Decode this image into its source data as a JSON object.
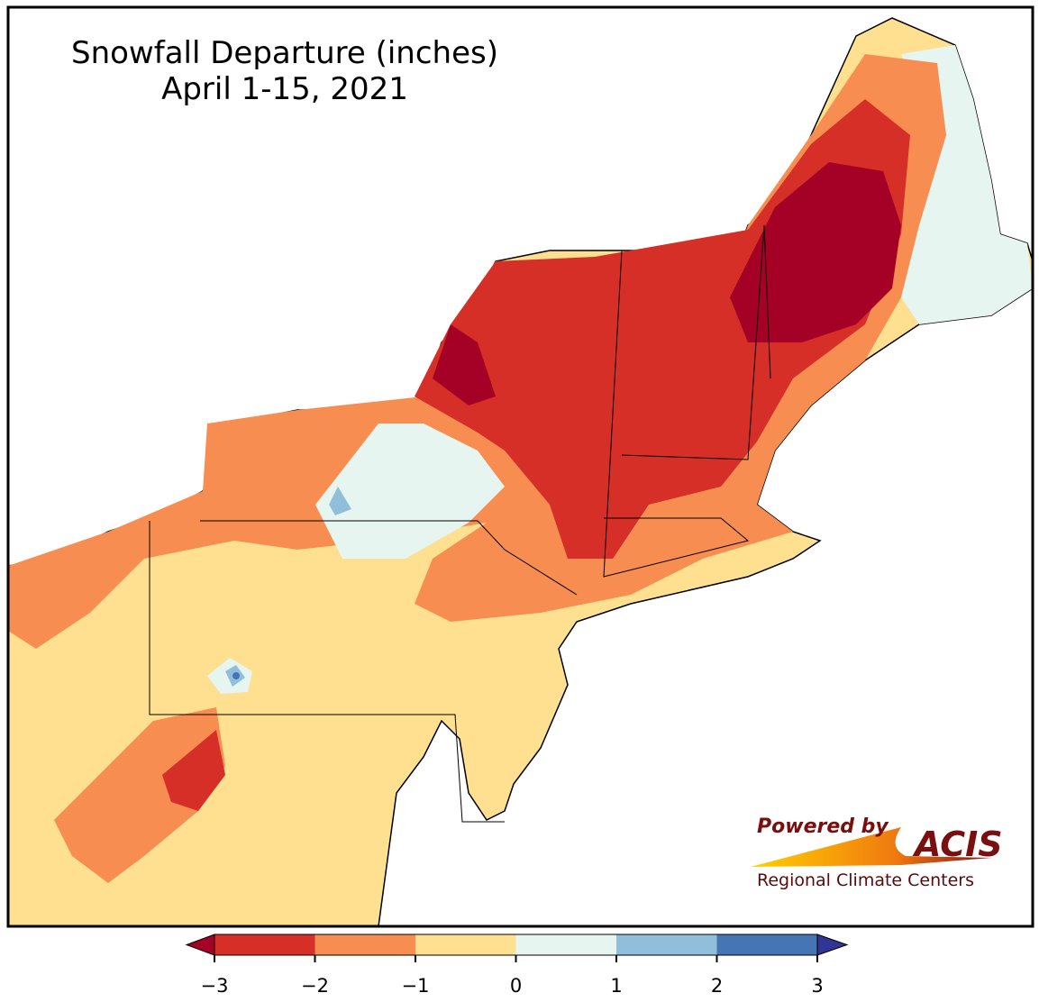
{
  "map": {
    "title": "Snowfall Departure (inches)",
    "subtitle": "April 1-15, 2021",
    "colorbar": {
      "ticks": [
        {
          "value": -3,
          "label": "−3"
        },
        {
          "value": -2,
          "label": "−2"
        },
        {
          "value": -1,
          "label": "−1"
        },
        0,
        1,
        2,
        3
      ],
      "colors": [
        "#d62f27",
        "#f88d52",
        "#fee090",
        "#e6f5ef",
        "#91bfdb",
        "#4575b4"
      ],
      "under_color": "#a50026",
      "over_color": "#313695"
    },
    "logo": {
      "powered": "Powered by",
      "name": "ACIS",
      "org": "Regional Climate Centers"
    }
  }
}
